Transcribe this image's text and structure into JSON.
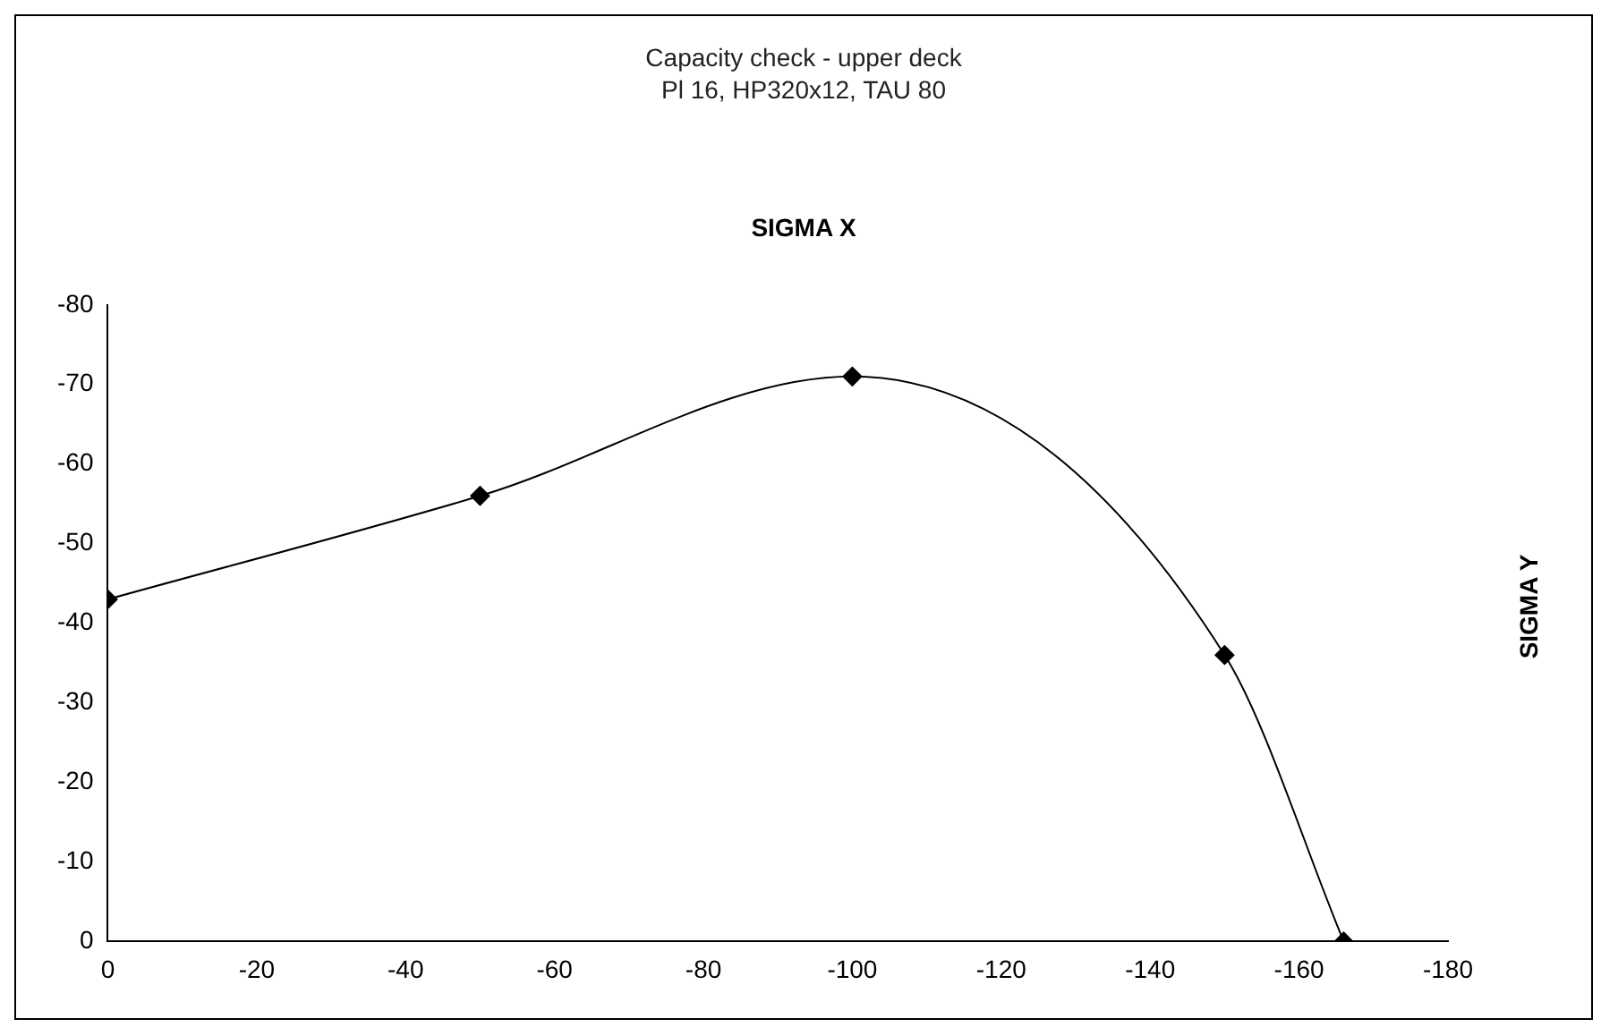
{
  "chart_data": {
    "type": "line",
    "title": "Capacity check - upper deck",
    "subtitle": "Pl 16, HP320x12, TAU 80",
    "xlabel": "SIGMA X",
    "ylabel": "SIGMA Y",
    "x": [
      0,
      -50,
      -100,
      -150,
      -166
    ],
    "series": [
      {
        "color": "#000000",
        "values": [
          -43,
          -56,
          -71,
          -36,
          0
        ]
      }
    ],
    "xlim": [
      0,
      -180
    ],
    "xticks": [
      0,
      -20,
      -40,
      -60,
      -80,
      -100,
      -120,
      -140,
      -160,
      -180
    ],
    "ylim": [
      0,
      -80
    ],
    "yticks": [
      0,
      -10,
      -20,
      -30,
      -40,
      -50,
      -60,
      -70,
      -80
    ],
    "grid": false,
    "legend": false,
    "marker": "diamond",
    "line_style": "solid"
  }
}
